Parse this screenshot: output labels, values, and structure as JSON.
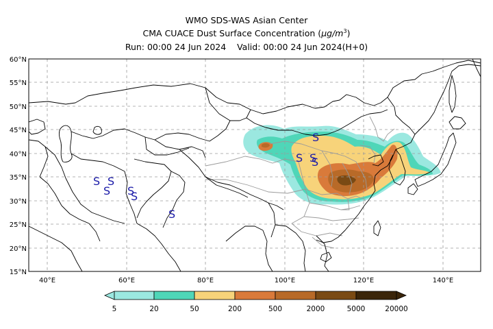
{
  "header": {
    "line1": "WMO SDS-WAS Asian Center",
    "line2_prefix": "CMA CUACE Dust Surface Concentration (",
    "line2_unit": "μg/m",
    "line2_sup": "3",
    "line2_suffix": ")",
    "run_label": "Run: 00:00 24 Jun 2024",
    "valid_label": "Valid: 00:00 24 Jun 2024(H+0)"
  },
  "map": {
    "lon_ticks": [
      "40°E",
      "60°E",
      "80°E",
      "100°E",
      "120°E",
      "140°E"
    ],
    "lat_ticks": [
      "60°N",
      "55°N",
      "50°N",
      "45°N",
      "40°N",
      "35°N",
      "30°N",
      "25°N",
      "20°N",
      "15°N"
    ],
    "dust_symbol": "S",
    "colors": {
      "frame": "#000000",
      "grid": "#9a9a9a",
      "coast": "#000000",
      "province": "#9a9a9a",
      "dust_symbol": "#1a1aa8"
    }
  },
  "legend": {
    "colors": [
      "#9be8e0",
      "#4fd6b8",
      "#f7d37a",
      "#d97a3a",
      "#b86a28",
      "#7a4a14",
      "#3a250a"
    ],
    "labels": [
      "5",
      "20",
      "50",
      "200",
      "500",
      "2000",
      "5000",
      "20000"
    ]
  }
}
